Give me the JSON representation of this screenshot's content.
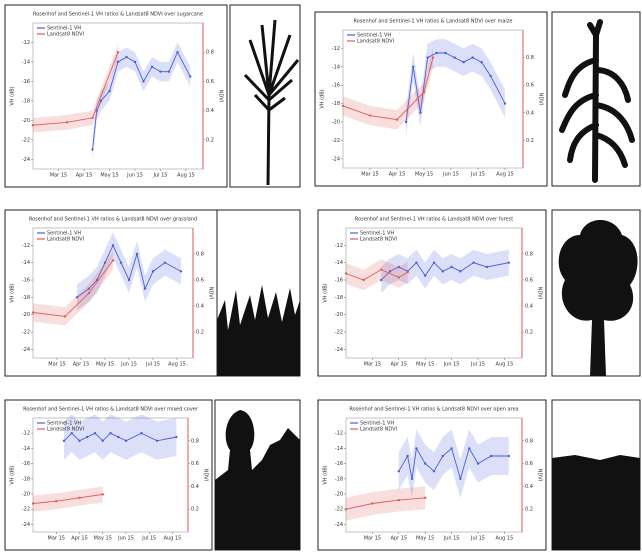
{
  "chart_data": [
    {
      "type": "line",
      "title": "Rosenhof and Sentinel-1 VH ratios & Landsat8 NDVI over sugarcane",
      "ylabel": "VH (dB)",
      "y2label": "NDVI",
      "xlim": [
        0,
        200
      ],
      "xticks": [
        {
          "value": 30,
          "label": "Mar 15"
        },
        {
          "value": 60,
          "label": "Apr 15"
        },
        {
          "value": 90,
          "label": "May 15"
        },
        {
          "value": 120,
          "label": "Jun 15"
        },
        {
          "value": 150,
          "label": "Jul 15"
        },
        {
          "value": 180,
          "label": "Aug 15"
        }
      ],
      "ylim": [
        -25,
        -10
      ],
      "yticks": [
        -24,
        -22,
        -20,
        -18,
        -16,
        -14,
        -12
      ],
      "y2lim": [
        0,
        1
      ],
      "y2ticks": [
        0.2,
        0.4,
        0.6,
        0.8
      ],
      "series": [
        {
          "name": "Sentinel-1 VH",
          "color": "#4a5fd6",
          "x": [
            70,
            75,
            80,
            90,
            100,
            110,
            120,
            130,
            140,
            150,
            160,
            170,
            185
          ],
          "values": [
            -23,
            -19,
            -18,
            -17,
            -14,
            -13.5,
            -14,
            -16,
            -14.5,
            -15,
            -15,
            -13,
            -15.5
          ],
          "spread": [
            1,
            1,
            1,
            1,
            1,
            1,
            1,
            1,
            1,
            1,
            1,
            1,
            1
          ]
        },
        {
          "name": "Landsat8 NDVI",
          "color": "#e05a5a",
          "axis": "y2",
          "x": [
            0,
            40,
            70,
            100
          ],
          "values": [
            0.3,
            0.32,
            0.35,
            0.8
          ],
          "spread": [
            0.05,
            0.05,
            0.05,
            0.05
          ]
        }
      ]
    },
    {
      "type": "line",
      "title": "Rosenhof and Sentinel-1 VH ratios & Landsat8 NDVI over maize",
      "ylabel": "VH (dB)",
      "y2label": "NDVI",
      "xlim": [
        0,
        200
      ],
      "xticks": [
        {
          "value": 30,
          "label": "Mar 15"
        },
        {
          "value": 60,
          "label": "Apr 15"
        },
        {
          "value": 90,
          "label": "May 15"
        },
        {
          "value": 120,
          "label": "Jun 15"
        },
        {
          "value": 150,
          "label": "Jul 15"
        },
        {
          "value": 180,
          "label": "Aug 15"
        }
      ],
      "ylim": [
        -25,
        -10
      ],
      "yticks": [
        -24,
        -22,
        -20,
        -18,
        -16,
        -14,
        -12
      ],
      "y2lim": [
        0,
        1
      ],
      "y2ticks": [
        0.2,
        0.4,
        0.6,
        0.8
      ],
      "series": [
        {
          "name": "Sentinel-1 VH",
          "color": "#4a5fd6",
          "x": [
            70,
            78,
            86,
            94,
            104,
            114,
            124,
            134,
            144,
            154,
            164,
            180
          ],
          "values": [
            -20,
            -14,
            -19,
            -13,
            -12.5,
            -12.5,
            -13,
            -13.5,
            -13,
            -13.5,
            -15,
            -18
          ],
          "spread": [
            1.5,
            1.5,
            1.5,
            1.5,
            1.5,
            1.5,
            1.5,
            1.5,
            1.5,
            1.5,
            1.5,
            1.5
          ]
        },
        {
          "name": "Landsat8 NDVI",
          "color": "#e05a5a",
          "axis": "y2",
          "x": [
            0,
            30,
            60,
            90,
            100
          ],
          "values": [
            0.45,
            0.38,
            0.35,
            0.55,
            0.8
          ],
          "spread": [
            0.07,
            0.07,
            0.07,
            0.07,
            0.07
          ]
        }
      ]
    },
    {
      "type": "line",
      "title": "Rosenhof and Sentinel-1 VH ratios & Landsat8 NDVI over grassland",
      "ylabel": "VH (dB)",
      "y2label": "NDVI",
      "xlim": [
        0,
        200
      ],
      "xticks": [
        {
          "value": 30,
          "label": "Mar 15"
        },
        {
          "value": 60,
          "label": "Apr 15"
        },
        {
          "value": 90,
          "label": "May 15"
        },
        {
          "value": 120,
          "label": "Jun 15"
        },
        {
          "value": 150,
          "label": "Jul 15"
        },
        {
          "value": 180,
          "label": "Aug 15"
        }
      ],
      "ylim": [
        -25,
        -10
      ],
      "yticks": [
        -24,
        -22,
        -20,
        -18,
        -16,
        -14,
        -12
      ],
      "y2lim": [
        0,
        1
      ],
      "y2ticks": [
        0.2,
        0.4,
        0.6,
        0.8
      ],
      "series": [
        {
          "name": "Sentinel-1 VH",
          "color": "#4a5fd6",
          "x": [
            55,
            70,
            80,
            90,
            100,
            110,
            120,
            130,
            140,
            150,
            165,
            185
          ],
          "values": [
            -18,
            -17,
            -16,
            -14,
            -12,
            -14,
            -16,
            -13,
            -17,
            -15,
            -14,
            -15
          ],
          "spread": [
            1.5,
            1.5,
            1.5,
            1.5,
            1.5,
            1.5,
            1.5,
            1.5,
            1.5,
            1.5,
            1.5,
            1.5
          ]
        },
        {
          "name": "Landsat8 NDVI",
          "color": "#e05a5a",
          "axis": "y2",
          "x": [
            0,
            40,
            70,
            100
          ],
          "values": [
            0.35,
            0.32,
            0.5,
            0.75
          ],
          "spread": [
            0.07,
            0.07,
            0.07,
            0.07
          ]
        }
      ]
    },
    {
      "type": "line",
      "title": "Rosenhof and Sentinel-1 VH ratios & Landsat8 NDVI over forest",
      "ylabel": "VH (dB)",
      "y2label": "NDVI",
      "xlim": [
        0,
        200
      ],
      "xticks": [
        {
          "value": 30,
          "label": "Mar 15"
        },
        {
          "value": 60,
          "label": "Apr 15"
        },
        {
          "value": 90,
          "label": "May 15"
        },
        {
          "value": 120,
          "label": "Jun 15"
        },
        {
          "value": 150,
          "label": "Jul 15"
        },
        {
          "value": 180,
          "label": "Aug 15"
        }
      ],
      "ylim": [
        -25,
        -10
      ],
      "yticks": [
        -24,
        -22,
        -20,
        -18,
        -16,
        -14,
        -12
      ],
      "y2lim": [
        0,
        1
      ],
      "y2ticks": [
        0.2,
        0.4,
        0.6,
        0.8
      ],
      "series": [
        {
          "name": "Sentinel-1 VH",
          "color": "#4a5fd6",
          "x": [
            40,
            50,
            60,
            70,
            80,
            90,
            100,
            110,
            120,
            130,
            145,
            160,
            185
          ],
          "values": [
            -16,
            -15,
            -14.5,
            -15,
            -14,
            -15.5,
            -14,
            -15,
            -14.5,
            -15,
            -14,
            -14.5,
            -14
          ],
          "spread": [
            1.5,
            1.5,
            1.5,
            1.5,
            1.5,
            1.5,
            1.5,
            1.5,
            1.5,
            1.5,
            1.5,
            1.5,
            1.5
          ]
        },
        {
          "name": "Landsat8 NDVI",
          "color": "#e05a5a",
          "axis": "y2",
          "x": [
            0,
            20,
            40,
            60,
            70
          ],
          "values": [
            0.65,
            0.6,
            0.68,
            0.62,
            0.66
          ],
          "spread": [
            0.08,
            0.08,
            0.08,
            0.08,
            0.08
          ]
        }
      ]
    },
    {
      "type": "line",
      "title": "Rosenhof and Sentinel-1 VH ratios & Landsat8 NDVI over mixed cover",
      "ylabel": "VH (dB)",
      "y2label": "NDVI",
      "xlim": [
        0,
        200
      ],
      "xticks": [
        {
          "value": 30,
          "label": "Mar 15"
        },
        {
          "value": 60,
          "label": "Apr 15"
        },
        {
          "value": 90,
          "label": "May 15"
        },
        {
          "value": 120,
          "label": "Jun 15"
        },
        {
          "value": 150,
          "label": "Jul 15"
        },
        {
          "value": 180,
          "label": "Aug 15"
        }
      ],
      "ylim": [
        -25,
        -10
      ],
      "yticks": [
        -24,
        -22,
        -20,
        -18,
        -16,
        -14,
        -12
      ],
      "y2lim": [
        0,
        1
      ],
      "y2ticks": [
        0.2,
        0.4,
        0.6,
        0.8
      ],
      "series": [
        {
          "name": "Sentinel-1 VH",
          "color": "#4a5fd6",
          "x": [
            40,
            50,
            60,
            70,
            80,
            90,
            100,
            110,
            120,
            140,
            160,
            185
          ],
          "values": [
            -13,
            -12,
            -13,
            -12.5,
            -12,
            -13,
            -12,
            -12.5,
            -13,
            -12,
            -13,
            -12.5
          ],
          "spread": [
            2.5,
            2.5,
            2.5,
            2.5,
            2.5,
            2.5,
            2.5,
            2.5,
            2.5,
            2.5,
            2.5,
            2.5
          ]
        },
        {
          "name": "Landsat8 NDVI",
          "color": "#e05a5a",
          "axis": "y2",
          "x": [
            0,
            30,
            60,
            90
          ],
          "values": [
            0.25,
            0.27,
            0.3,
            0.33
          ],
          "spread": [
            0.07,
            0.07,
            0.07,
            0.07
          ]
        }
      ]
    },
    {
      "type": "line",
      "title": "Rosenhof and Sentinel-1 VH ratios & Landsat8 NDVI over open area",
      "ylabel": "VH (dB)",
      "y2label": "NDVI",
      "xlim": [
        0,
        200
      ],
      "xticks": [
        {
          "value": 30,
          "label": "Mar 15"
        },
        {
          "value": 60,
          "label": "Apr 15"
        },
        {
          "value": 90,
          "label": "May 15"
        },
        {
          "value": 120,
          "label": "Jun 15"
        },
        {
          "value": 150,
          "label": "Jul 15"
        },
        {
          "value": 180,
          "label": "Aug 15"
        }
      ],
      "ylim": [
        -25,
        -10
      ],
      "yticks": [
        -24,
        -22,
        -20,
        -18,
        -16,
        -14,
        -12
      ],
      "y2lim": [
        0,
        1
      ],
      "y2ticks": [
        0.2,
        0.4,
        0.6,
        0.8
      ],
      "series": [
        {
          "name": "Sentinel-1 VH",
          "color": "#4a5fd6",
          "x": [
            60,
            70,
            75,
            80,
            90,
            100,
            110,
            120,
            130,
            140,
            150,
            165,
            185
          ],
          "values": [
            -17,
            -15,
            -18,
            -14,
            -16,
            -17,
            -15,
            -14,
            -18,
            -14,
            -16,
            -15,
            -15
          ],
          "spread": [
            2.5,
            2.5,
            2.5,
            2.5,
            2.5,
            2.5,
            2.5,
            2.5,
            2.5,
            2.5,
            2.5,
            2.5,
            2.5
          ]
        },
        {
          "name": "Landsat8 NDVI",
          "color": "#e05a5a",
          "axis": "y2",
          "x": [
            0,
            30,
            60,
            90
          ],
          "values": [
            0.2,
            0.25,
            0.28,
            0.3
          ],
          "spread": [
            0.1,
            0.1,
            0.1,
            0.1
          ]
        }
      ]
    }
  ]
}
